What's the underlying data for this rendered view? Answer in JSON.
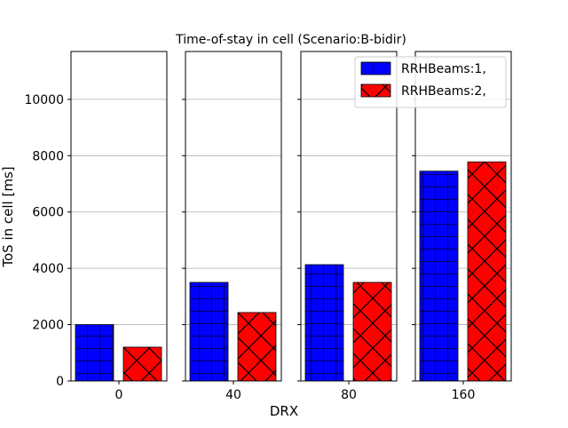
{
  "chart_data": {
    "type": "bar",
    "title": "Time-of-stay in cell (Scenario:B-bidir)",
    "xlabel": "DRX",
    "ylabel": "ToS in cell [ms]",
    "ylim": [
      0,
      11700
    ],
    "yticks": [
      0,
      2000,
      4000,
      6000,
      8000,
      10000
    ],
    "categories": [
      "0",
      "40",
      "80",
      "160"
    ],
    "grid": "horizontal",
    "legend_position": "top-right",
    "series": [
      {
        "name": "RRHBeams:1,",
        "color": "#0000ff",
        "hatch": "grid",
        "values": [
          2000,
          3500,
          4130,
          7450
        ]
      },
      {
        "name": "RRHBeams:2,",
        "color": "#ff0000",
        "hatch": "cross",
        "values": [
          1200,
          2430,
          3500,
          7780
        ]
      }
    ]
  }
}
